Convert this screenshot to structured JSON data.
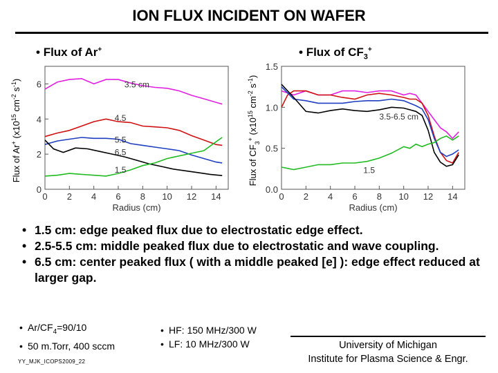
{
  "title": "ION FLUX INCIDENT ON WAFER",
  "left_header": {
    "text": "Flux of Ar",
    "sup": "+"
  },
  "right_header": {
    "text": "Flux of CF",
    "sub": "3",
    "sup": "+"
  },
  "chart_data": [
    {
      "type": "line",
      "xlabel": "Radius (cm)",
      "ylabel": "Flux of Ar+ (x10^15 cm^-2 s^-1)",
      "xlim": [
        0,
        15
      ],
      "ylim": [
        0,
        7
      ],
      "xticks": [
        "0",
        "2",
        "4",
        "6",
        "8",
        "10",
        "12",
        "14"
      ],
      "yticks": [
        "0",
        "2",
        "4",
        "6"
      ],
      "series": [
        {
          "name": "3.5 cm",
          "color": "#e020e0",
          "label_at": [
            6.5,
            5.8
          ],
          "x": [
            0,
            1,
            2,
            3,
            4,
            5,
            6,
            7,
            8,
            9,
            10,
            11,
            12,
            13,
            14,
            14.5
          ],
          "y": [
            5.7,
            6.1,
            6.25,
            6.3,
            6.0,
            6.25,
            6.25,
            6.05,
            5.9,
            5.8,
            5.75,
            5.6,
            5.35,
            5.15,
            4.95,
            4.85
          ]
        },
        {
          "name": "4.5",
          "color": "#d01010",
          "label_at": [
            5.7,
            3.9
          ],
          "x": [
            0,
            1,
            2,
            3,
            4,
            5,
            6,
            7,
            8,
            9,
            10,
            11,
            12,
            13,
            14,
            14.5
          ],
          "y": [
            3.0,
            3.2,
            3.35,
            3.6,
            3.85,
            4.0,
            3.85,
            3.8,
            3.6,
            3.55,
            3.5,
            3.35,
            3.05,
            2.8,
            2.55,
            2.5
          ]
        },
        {
          "name": "5.5",
          "color": "#1e3ec0",
          "label_at": [
            5.7,
            2.65
          ],
          "x": [
            0,
            1,
            2,
            3,
            4,
            5,
            6,
            7,
            8,
            9,
            10,
            11,
            12,
            13,
            14,
            14.5
          ],
          "y": [
            2.55,
            2.75,
            2.85,
            2.95,
            2.9,
            2.9,
            2.85,
            2.6,
            2.5,
            2.4,
            2.3,
            2.2,
            1.95,
            1.75,
            1.55,
            1.5
          ]
        },
        {
          "name": "6.5",
          "color": "#000000",
          "label_at": [
            5.7,
            1.95
          ],
          "x": [
            0,
            0.7,
            1.5,
            2.5,
            3.5,
            4.5,
            5.5,
            6.5,
            7.5,
            8.5,
            9.5,
            10.5,
            11.5,
            12.5,
            13.5,
            14.5
          ],
          "y": [
            2.8,
            2.3,
            2.1,
            2.35,
            2.3,
            2.15,
            2.0,
            1.85,
            1.65,
            1.45,
            1.3,
            1.15,
            1.05,
            0.95,
            0.85,
            0.78
          ]
        },
        {
          "name": "1.5",
          "color": "#20bb20",
          "label_at": [
            5.7,
            0.95
          ],
          "x": [
            0,
            1,
            2,
            3,
            4,
            5,
            6,
            7,
            8,
            9,
            10,
            11,
            12,
            13,
            14,
            14.5
          ],
          "y": [
            0.75,
            0.8,
            0.9,
            0.85,
            0.8,
            0.75,
            0.9,
            1.1,
            1.35,
            1.5,
            1.75,
            1.9,
            2.05,
            2.2,
            2.7,
            2.95
          ]
        }
      ]
    },
    {
      "type": "line",
      "xlabel": "Radius (cm)",
      "ylabel": "Flux of CF3+ (x10^15 cm^-2 s^-1)",
      "xlim": [
        0,
        15
      ],
      "ylim": [
        0,
        1.5
      ],
      "xticks": [
        "0",
        "2",
        "4",
        "6",
        "8",
        "10",
        "12",
        "14"
      ],
      "yticks": [
        "0.0",
        "0.5",
        "1.0",
        "1.5"
      ],
      "series": [
        {
          "name": "",
          "color": "#e020e0",
          "x": [
            0,
            1,
            2,
            3,
            4,
            5,
            6,
            7,
            8,
            9,
            10,
            10.5,
            11,
            11.5,
            12,
            12.5,
            13,
            13.5,
            14,
            14.5
          ],
          "y": [
            1.2,
            1.15,
            1.2,
            1.15,
            1.15,
            1.2,
            1.2,
            1.18,
            1.2,
            1.2,
            1.15,
            1.17,
            1.15,
            1.05,
            0.95,
            0.85,
            0.75,
            0.7,
            0.62,
            0.7
          ]
        },
        {
          "name": "",
          "color": "#d01010",
          "x": [
            0,
            0.5,
            1,
            2,
            3,
            4,
            5,
            6,
            7,
            8,
            9,
            10,
            10.5,
            11,
            11.5,
            12,
            12.5,
            13,
            13.5,
            14,
            14.5
          ],
          "y": [
            1.0,
            1.15,
            1.2,
            1.2,
            1.15,
            1.15,
            1.12,
            1.1,
            1.15,
            1.17,
            1.15,
            1.12,
            1.1,
            1.1,
            1.05,
            0.9,
            0.65,
            0.45,
            0.35,
            0.32,
            0.45
          ]
        },
        {
          "name": "",
          "color": "#1e3ec0",
          "x": [
            0,
            1,
            2,
            3,
            4,
            5,
            6,
            7,
            8,
            9,
            10,
            10.5,
            11,
            11.5,
            12,
            12.5,
            13,
            13.5,
            14,
            14.5
          ],
          "y": [
            1.25,
            1.1,
            1.08,
            1.05,
            1.05,
            1.05,
            1.07,
            1.08,
            1.08,
            1.1,
            1.08,
            1.05,
            1.02,
            0.98,
            0.85,
            0.62,
            0.45,
            0.4,
            0.43,
            0.48
          ]
        },
        {
          "name": "",
          "color": "#000000",
          "x": [
            0,
            0.5,
            1,
            2,
            3,
            4,
            5,
            6,
            7,
            8,
            9,
            10,
            10.5,
            11,
            11.5,
            12,
            12.5,
            13,
            13.5,
            14,
            14.5
          ],
          "y": [
            1.28,
            1.2,
            1.12,
            0.95,
            0.93,
            0.96,
            0.98,
            0.96,
            0.95,
            0.97,
            1.0,
            0.99,
            0.97,
            0.95,
            0.9,
            0.72,
            0.45,
            0.33,
            0.28,
            0.3,
            0.42
          ]
        },
        {
          "name": "",
          "color": "#20bb20",
          "x": [
            0,
            1,
            2,
            3,
            4,
            5,
            6,
            7,
            8,
            9,
            10,
            10.5,
            11,
            11.5,
            12,
            12.5,
            13,
            13.5,
            14,
            14.5
          ],
          "y": [
            0.27,
            0.24,
            0.27,
            0.3,
            0.3,
            0.32,
            0.32,
            0.34,
            0.38,
            0.44,
            0.52,
            0.5,
            0.55,
            0.52,
            0.55,
            0.57,
            0.62,
            0.65,
            0.6,
            0.65
          ]
        }
      ],
      "annotations": [
        {
          "text": "3.5-6.5 cm",
          "at": [
            8.0,
            0.85
          ]
        },
        {
          "text": "1.5",
          "at": [
            6.7,
            0.2
          ]
        }
      ]
    }
  ],
  "bullets": [
    "1.5 cm: edge peaked flux due to electrostatic edge effect.",
    "2.5-5.5 cm: middle peaked flux due to electrostatic and wave coupling.",
    "6.5 cm: center peaked flux ( with a middle peaked [e] ): edge effect reduced at larger gap."
  ],
  "params_left": {
    "line1_pre": "Ar/CF",
    "line1_sub": "4",
    "line1_post": "=90/10",
    "line2": "50 m.Torr, 400 sccm"
  },
  "params_right": {
    "line1": "HF: 150 MHz/300 W",
    "line2": "LF: 10 MHz/300 W"
  },
  "footer_id": "YY_MJK_ICOPS2009_22",
  "affiliation": {
    "line1": "University of Michigan",
    "line2": "Institute for Plasma Science & Engr."
  }
}
